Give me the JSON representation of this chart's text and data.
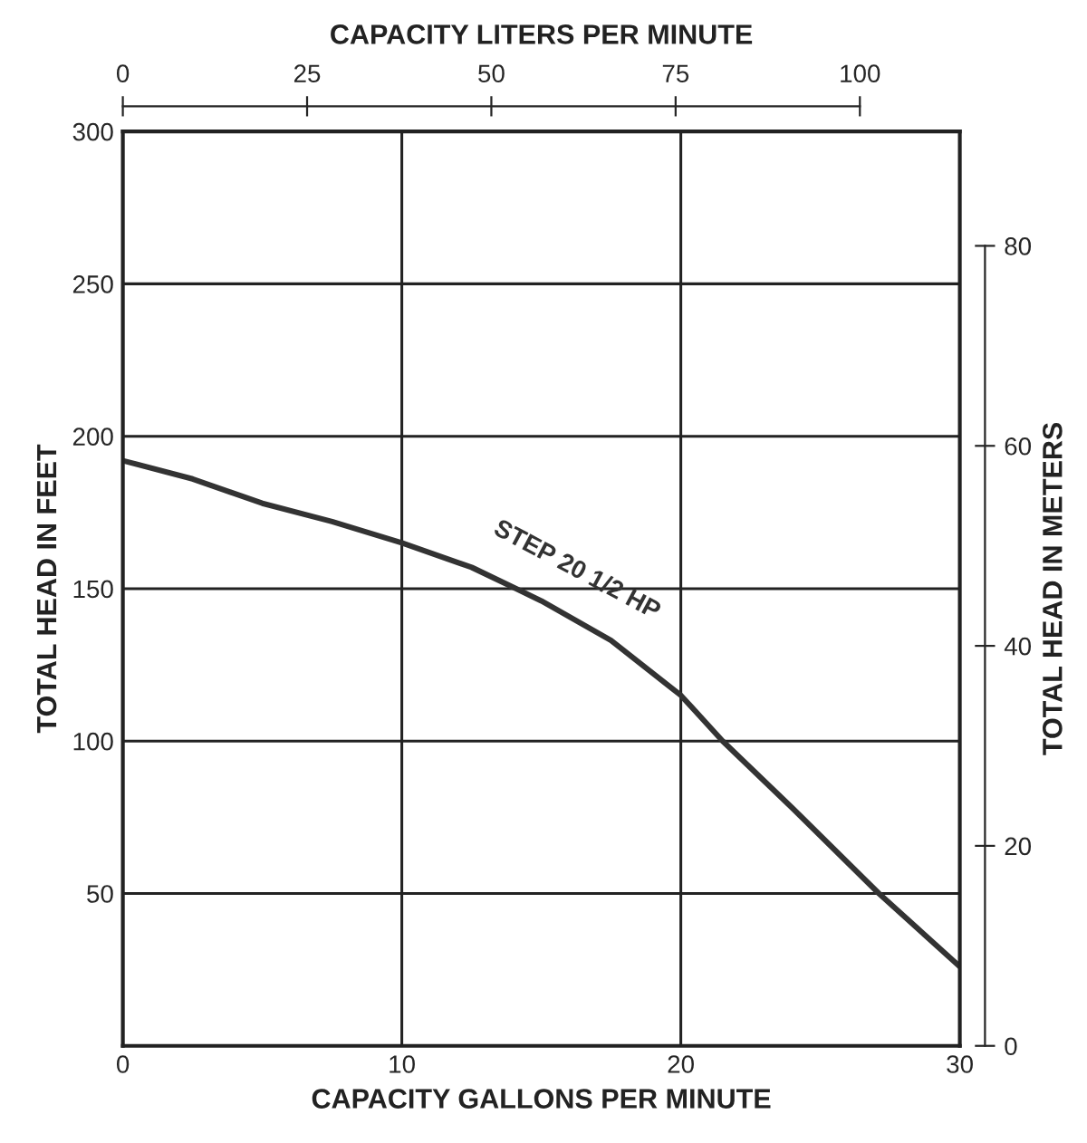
{
  "chart_data": {
    "type": "line",
    "xlabel": "CAPACITY GALLONS PER MINUTE",
    "x2label": "CAPACITY LITERS PER MINUTE",
    "ylabel": "TOTAL HEAD IN FEET",
    "y2label": "TOTAL HEAD IN METERS",
    "xlim": [
      0,
      30
    ],
    "xticks": [
      0,
      10,
      20,
      30
    ],
    "x2lim": [
      0,
      113.56
    ],
    "x2ticks": [
      0,
      25,
      50,
      75,
      100
    ],
    "ylim": [
      0,
      300
    ],
    "yticks": [
      50,
      100,
      150,
      200,
      250,
      300
    ],
    "y2lim": [
      0,
      91.44
    ],
    "y2ticks": [
      0,
      20,
      40,
      60,
      80
    ],
    "grid": true,
    "marker": "none",
    "line_style": "solid",
    "series": [
      {
        "name": "STEP 20 1/2 HP",
        "color": "#333333",
        "x": [
          0,
          2.5,
          5,
          7.5,
          10,
          12.5,
          14.1,
          15,
          17.5,
          20,
          21.5,
          24,
          27.1,
          30
        ],
        "values": [
          192,
          186,
          178,
          172,
          165,
          157,
          150,
          146,
          133,
          115,
          100,
          78,
          50,
          26
        ]
      }
    ]
  }
}
